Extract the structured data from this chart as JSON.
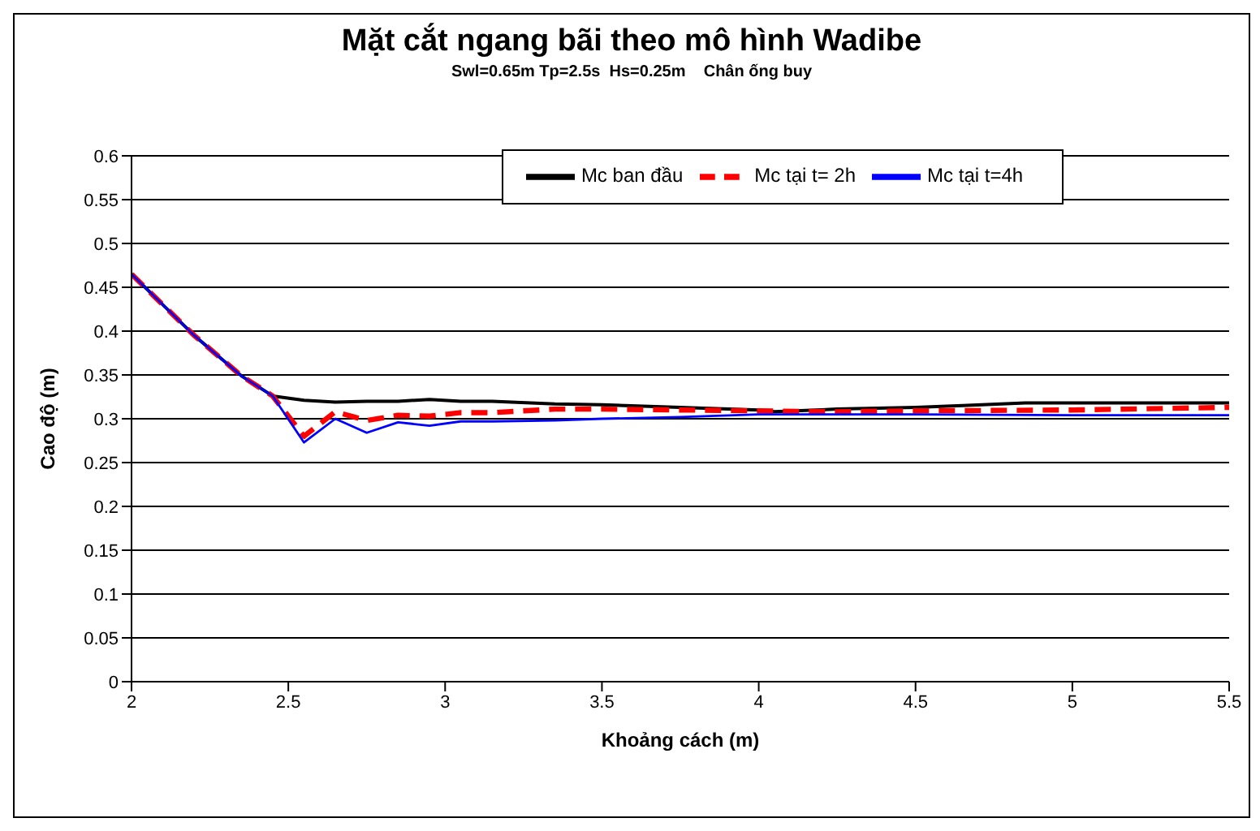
{
  "chart_data": {
    "type": "line",
    "title": "Mặt cắt ngang bãi theo mô hình Wadibe",
    "subtitle": "Swl=0.65m Tp=2.5s  Hs=0.25m    Chân ống buy",
    "xlabel": "Khoảng cách (m)",
    "ylabel": "Cao độ (m)",
    "xlim": [
      2,
      5.5
    ],
    "xticks": [
      2,
      2.5,
      3,
      3.5,
      4,
      4.5,
      5,
      5.5
    ],
    "ylim": [
      0,
      0.6
    ],
    "yticks": [
      0,
      0.05,
      0.1,
      0.15,
      0.2,
      0.25,
      0.3,
      0.35,
      0.4,
      0.45,
      0.5,
      0.55,
      0.6
    ],
    "grid": "y",
    "legend": "top",
    "marker": "none",
    "series": [
      {
        "name": "Mc ban đầu",
        "color": "#000000",
        "line_style": "solid",
        "x": [
          2,
          2.1,
          2.2,
          2.35,
          2.45,
          2.55,
          2.65,
          2.75,
          2.85,
          2.95,
          3.05,
          3.15,
          3.35,
          3.5,
          3.75,
          4,
          4.05,
          4.25,
          4.5,
          4.65,
          4.85,
          5,
          5.5
        ],
        "values": [
          0.465,
          0.43,
          0.395,
          0.349,
          0.326,
          0.321,
          0.319,
          0.32,
          0.32,
          0.322,
          0.32,
          0.32,
          0.317,
          0.316,
          0.313,
          0.31,
          0.308,
          0.311,
          0.313,
          0.315,
          0.318,
          0.318,
          0.318
        ]
      },
      {
        "name": "Mc tại t= 2h",
        "color": "#ff0000",
        "line_style": "dashed",
        "x": [
          2,
          2.1,
          2.2,
          2.35,
          2.45,
          2.55,
          2.65,
          2.75,
          2.85,
          2.95,
          3.05,
          3.15,
          3.35,
          3.5,
          3.75,
          4,
          4.25,
          4.5,
          5,
          5.5
        ],
        "values": [
          0.465,
          0.43,
          0.395,
          0.349,
          0.326,
          0.28,
          0.308,
          0.298,
          0.304,
          0.303,
          0.307,
          0.307,
          0.311,
          0.311,
          0.31,
          0.309,
          0.308,
          0.309,
          0.31,
          0.313
        ]
      },
      {
        "name": "Mc tại t=4h",
        "color": "#0000ff",
        "line_style": "solid",
        "x": [
          2,
          2.1,
          2.2,
          2.35,
          2.45,
          2.55,
          2.65,
          2.75,
          2.85,
          2.95,
          3.05,
          3.15,
          3.35,
          3.5,
          3.75,
          4,
          4.25,
          4.5,
          5,
          5.5
        ],
        "values": [
          0.465,
          0.43,
          0.395,
          0.349,
          0.326,
          0.273,
          0.3,
          0.284,
          0.296,
          0.292,
          0.297,
          0.297,
          0.298,
          0.3,
          0.302,
          0.305,
          0.305,
          0.305,
          0.304,
          0.304
        ]
      }
    ]
  }
}
